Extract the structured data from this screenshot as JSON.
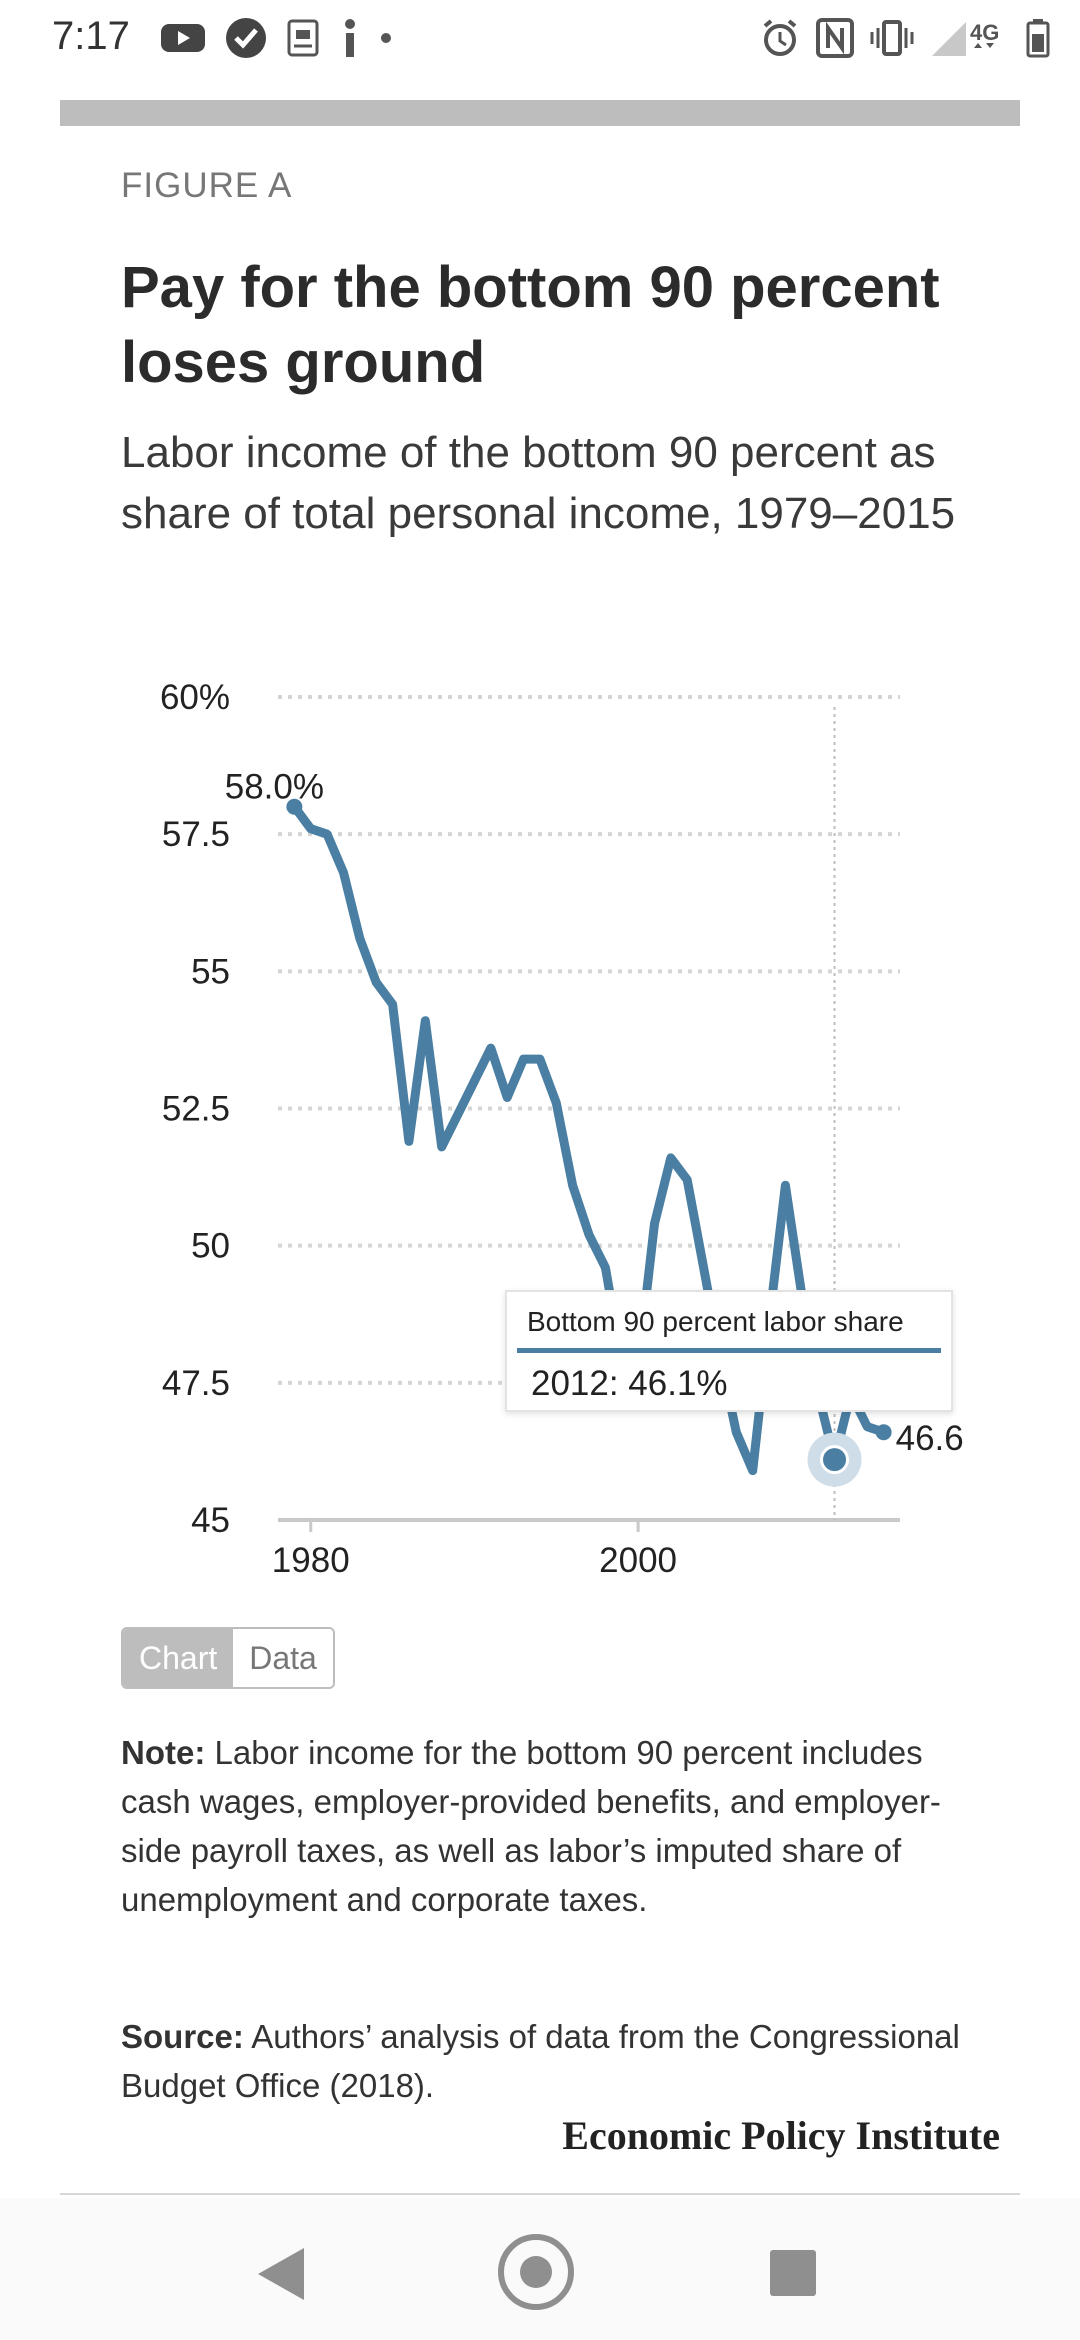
{
  "status_bar": {
    "time": "7:17",
    "network": "4G",
    "icons_left": [
      "youtube-icon",
      "check-circle-icon",
      "id-card-icon",
      "info-icon",
      "dot-icon"
    ],
    "icons_right": [
      "alarm-icon",
      "nfc-icon",
      "vibrate-icon",
      "signal-icon",
      "battery-icon"
    ]
  },
  "figure": {
    "label": "FIGURE A",
    "title": "Pay for the bottom 90 percent loses ground",
    "subtitle": "Labor income of the bottom 90 percent as share of total personal income, 1979–2015"
  },
  "chart_data": {
    "type": "line",
    "title": "Pay for the bottom 90 percent loses ground",
    "subtitle": "Labor income of the bottom 90 percent as share of total personal income, 1979–2015",
    "xlabel": "",
    "ylabel": "",
    "xlim": [
      1978,
      2016
    ],
    "ylim": [
      45,
      60
    ],
    "y_ticks": [
      45,
      47.5,
      50,
      52.5,
      55,
      57.5,
      60
    ],
    "y_tick_labels": [
      "45",
      "47.5",
      "50",
      "52.5",
      "55",
      "57.5",
      "60%"
    ],
    "x_ticks": [
      1980,
      2000
    ],
    "x_tick_labels": [
      "1980",
      "2000"
    ],
    "grid": true,
    "color": "#4a7fa3",
    "series": [
      {
        "name": "Bottom 90 percent labor share",
        "x": [
          1979,
          1980,
          1981,
          1982,
          1983,
          1984,
          1985,
          1986,
          1987,
          1988,
          1989,
          1990,
          1991,
          1992,
          1993,
          1994,
          1995,
          1996,
          1997,
          1998,
          1999,
          2000,
          2001,
          2002,
          2003,
          2004,
          2005,
          2006,
          2007,
          2008,
          2009,
          2010,
          2011,
          2012,
          2013,
          2014,
          2015
        ],
        "y": [
          58.0,
          57.6,
          57.5,
          56.8,
          55.6,
          54.8,
          54.4,
          51.9,
          54.1,
          51.8,
          52.4,
          53.0,
          53.6,
          52.7,
          53.4,
          53.4,
          52.6,
          51.1,
          50.2,
          49.6,
          47.9,
          47.8,
          50.4,
          51.6,
          51.2,
          49.6,
          48.0,
          46.6,
          45.9,
          48.6,
          51.1,
          49.1,
          47.3,
          46.1,
          47.3,
          46.7,
          46.6
        ]
      }
    ],
    "annotations": [
      {
        "x": 1979,
        "y": 58.0,
        "text": "58.0%"
      },
      {
        "x": 2015,
        "y": 46.6,
        "text": "46.6"
      }
    ],
    "tooltip": {
      "series": "Bottom 90 percent labor share",
      "year": 2012,
      "value": 46.1,
      "text": "2012: 46.1%"
    }
  },
  "toggle": {
    "chart_label": "Chart",
    "data_label": "Data",
    "active": "chart"
  },
  "note": {
    "label": "Note:",
    "text": " Labor income for the bottom 90 percent includes cash wages, employer-provided benefits, and employer-side payroll taxes, as well as labor’s imputed share of unemployment and corporate taxes."
  },
  "source": {
    "label": "Source:",
    "text": " Authors’ analysis of data from the Congressional Budget Office (2018)."
  },
  "brand": "Economic Policy Institute",
  "nav_bar": {
    "back": "back-icon",
    "home": "home-icon",
    "recents": "recents-icon"
  }
}
